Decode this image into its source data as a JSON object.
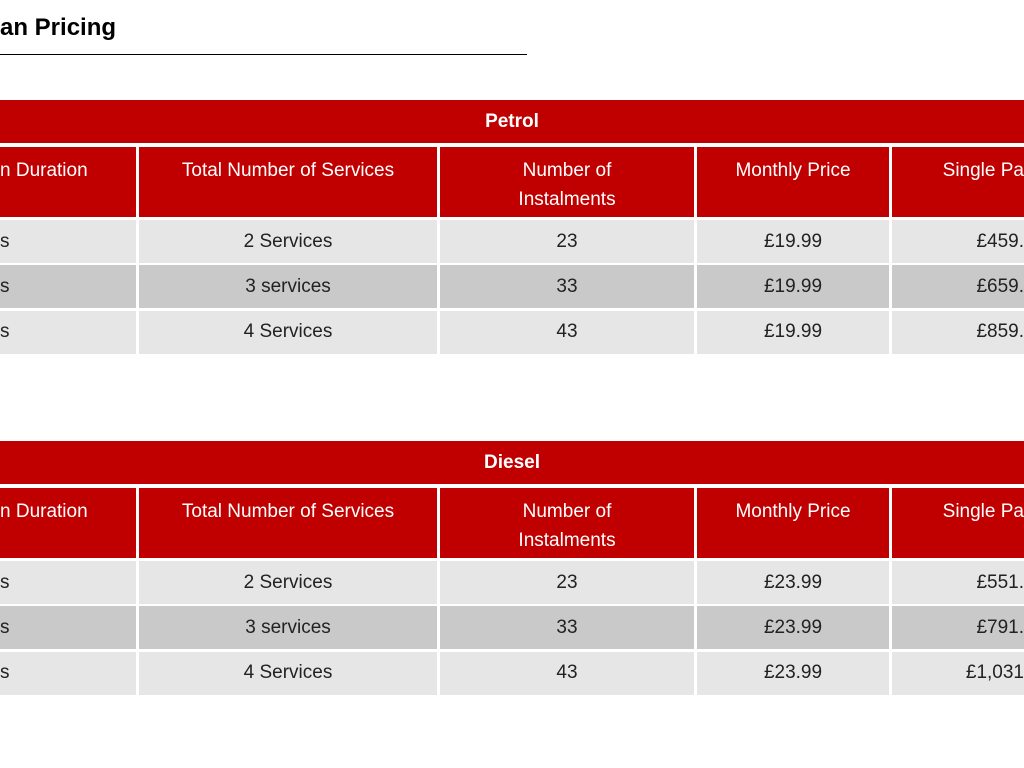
{
  "title": "an Pricing",
  "tables": [
    {
      "heading": "Petrol",
      "columns": [
        "n Duration",
        "Total Number of Services",
        "Number of Instalments",
        "Monthly Price",
        "Single Pa"
      ],
      "rows": [
        [
          "s",
          "2 Services",
          "23",
          "£19.99",
          "£459."
        ],
        [
          "s",
          "3 services",
          "33",
          "£19.99",
          "£659."
        ],
        [
          "s",
          "4 Services",
          "43",
          "£19.99",
          "£859."
        ]
      ]
    },
    {
      "heading": "Diesel",
      "columns": [
        "n Duration",
        "Total Number of Services",
        "Number of Instalments",
        "Monthly Price",
        "Single Pa"
      ],
      "rows": [
        [
          "s",
          "2 Services",
          "23",
          "£23.99",
          "£551."
        ],
        [
          "s",
          "3 services",
          "33",
          "£23.99",
          "£791."
        ],
        [
          "s",
          "4 Services",
          "43",
          "£23.99",
          "£1,031"
        ]
      ]
    }
  ]
}
